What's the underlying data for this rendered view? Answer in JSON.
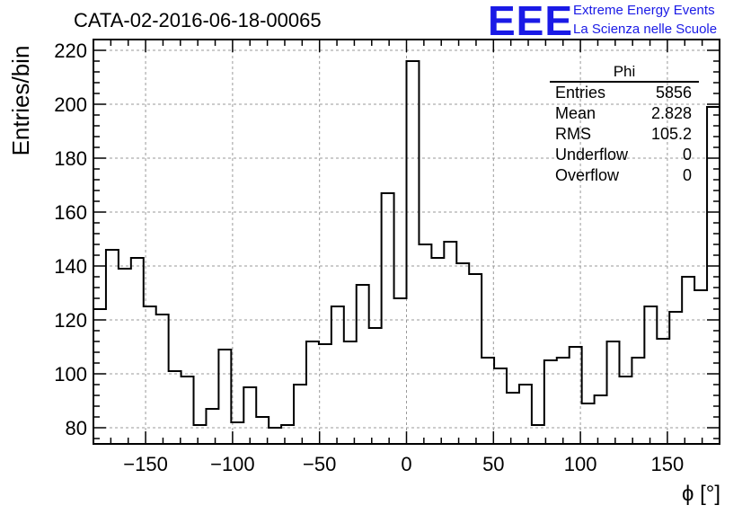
{
  "chart_data": {
    "type": "histogram",
    "title": "CATA-02-2016-06-18-00065",
    "xlabel": "ϕ [°]",
    "ylabel": "Entries/bin",
    "xlim": [
      -180,
      180
    ],
    "ylim": [
      74,
      224
    ],
    "x_ticks": [
      -150,
      -100,
      -50,
      0,
      50,
      100,
      150
    ],
    "y_ticks": [
      80,
      100,
      120,
      140,
      160,
      180,
      200,
      220
    ],
    "grid": true,
    "bin_width": 7.2,
    "bin_edges_start": -180,
    "values": [
      124,
      146,
      139,
      143,
      125,
      122,
      101,
      99,
      81,
      87,
      109,
      82,
      95,
      84,
      80,
      81,
      96,
      112,
      111,
      125,
      112,
      133,
      117,
      167,
      128,
      216,
      148,
      143,
      149,
      141,
      137,
      106,
      102,
      93,
      96,
      81,
      105,
      106,
      110,
      89,
      92,
      112,
      99,
      106,
      125,
      113,
      123,
      136,
      131,
      199
    ],
    "stats_box": {
      "name": "Phi",
      "rows": [
        {
          "label": "Entries",
          "value": "5856"
        },
        {
          "label": "Mean",
          "value": "2.828"
        },
        {
          "label": "RMS",
          "value": "105.2"
        },
        {
          "label": "Underflow",
          "value": "0"
        },
        {
          "label": "Overflow",
          "value": "0"
        }
      ]
    }
  },
  "logo": {
    "mark": "EEE",
    "line1": "Extreme Energy Events",
    "line2": "La Scienza nelle Scuole",
    "color": "#1a1ae6"
  }
}
